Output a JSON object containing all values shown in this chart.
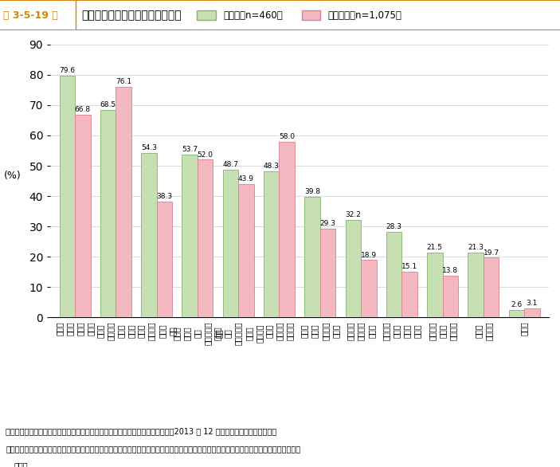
{
  "title_fig": "第 3-5-19 図",
  "title_main": "受注業務の選択基準（複数回答）",
  "legend_label_1": "事業者（n=460）",
  "legend_label_2": "非事業者（n=1,075）",
  "bar_color_1": "#c6e0b4",
  "bar_color_2": "#f4b8c1",
  "bar_edge_color_1": "#82b366",
  "bar_edge_color_2": "#d98090",
  "categories": [
    "仕事の\n内容に\n見合っ\nた報酬",
    "自身の\n能力内の\n仕事で\nあるか",
    "自身の\nスキルの\n活用可\n能性",
    "仕事の\n内容の\n魅力\n（やりがい\n等）",
    "仕事の\n内容\n（発注スペ\nック）\nの明確さ",
    "時間の\n有効活用\nの可能性",
    "自身の\nスキル\nアップの\n可能性",
    "発注者が\n受けてい\nる評価",
    "サイトで\nの実績\n作りと\nなるか",
    "発注者の\n募集・\n発注実績",
    "報酬の\n決定方法",
    "その他"
  ],
  "values_1": [
    79.6,
    68.5,
    54.3,
    53.7,
    48.7,
    48.3,
    39.8,
    32.2,
    28.3,
    21.5,
    21.3,
    2.6
  ],
  "values_2": [
    66.8,
    76.1,
    38.3,
    52.0,
    43.9,
    58.0,
    29.3,
    18.9,
    15.1,
    13.8,
    19.7,
    3.1
  ],
  "ylim": [
    0,
    90
  ],
  "ylabel": "(%)",
  "yticks": [
    0,
    10,
    20,
    30,
    40,
    50,
    60,
    70,
    80,
    90
  ],
  "note_line1": "資料：中小企業庁委託「日本のクラウドソーシングの利用実態に関する調査」（2013 年 12 月、（株）ワイズスタッフ）",
  "note_line2": "（注）クラウドソーシングサイトで、「仕事を受注したことがある」、「仕事を受注も発注もしたことがある」と回答した利用者を集計して",
  "note_line3": "いる。"
}
